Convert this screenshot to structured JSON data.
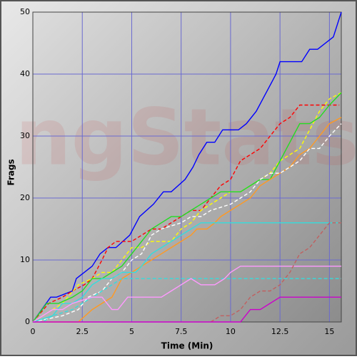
{
  "chart_data": {
    "type": "line",
    "watermark": "ngStats",
    "x_label": "Time (Min)",
    "y_label": "Frags",
    "xlim": [
      0,
      15.6
    ],
    "ylim": [
      0,
      50
    ],
    "xticks": [
      0,
      2.5,
      5,
      7.5,
      10,
      12.5,
      15
    ],
    "yticks": [
      0,
      10,
      20,
      30,
      40,
      50
    ],
    "grid": true,
    "series": [
      {
        "color": "#0000ff",
        "dashed": false,
        "x": [
          0,
          0.9,
          1.2,
          2,
          2.2,
          3,
          3.4,
          3.8,
          4.2,
          4.9,
          5.4,
          6.1,
          6.6,
          7,
          7.7,
          8.1,
          8.4,
          8.8,
          9.2,
          9.6,
          10.4,
          10.8,
          11.3,
          11.8,
          12.3,
          12.5,
          13.6,
          14,
          14.4,
          15.2,
          15.6
        ],
        "values": [
          0,
          4,
          4,
          5,
          7,
          9,
          11,
          12,
          12,
          14,
          17,
          19,
          21,
          21,
          23,
          25,
          27,
          29,
          29,
          31,
          31,
          32,
          34,
          37,
          40,
          42,
          42,
          44,
          44,
          46,
          50
        ]
      },
      {
        "color": "#ff0000",
        "dashed": true,
        "x": [
          0,
          0.8,
          1.5,
          2,
          2.6,
          3,
          3.5,
          3.8,
          4.2,
          5,
          5.5,
          6,
          6.5,
          7,
          7.5,
          8,
          8.5,
          9,
          9.5,
          10,
          10.5,
          11,
          11.5,
          12,
          12.5,
          13,
          13.5,
          15.5
        ],
        "values": [
          0,
          3,
          4,
          5,
          6,
          7,
          10,
          12,
          13,
          13,
          14,
          15,
          15,
          16,
          17,
          18,
          18,
          20,
          22,
          23,
          26,
          27,
          28,
          30,
          32,
          33,
          35,
          35
        ]
      },
      {
        "color": "#ffff00",
        "dashed": true,
        "x": [
          0,
          1,
          1.5,
          2.3,
          3,
          3.5,
          4,
          4.5,
          5,
          5.5,
          6,
          7,
          7.5,
          8,
          8.5,
          9,
          9.5,
          10,
          10.5,
          11,
          11.5,
          12,
          12.5,
          13,
          13.5,
          14,
          14.5,
          15,
          15.6
        ],
        "values": [
          0,
          2,
          3,
          6,
          7,
          8,
          8,
          10,
          12,
          12,
          13,
          13,
          15,
          16,
          18,
          19,
          20,
          21,
          21,
          22,
          23,
          24,
          26,
          27,
          28,
          31,
          34,
          36,
          37
        ]
      },
      {
        "color": "#22dd22",
        "dashed": false,
        "x": [
          0,
          0.7,
          1.3,
          2,
          2.5,
          3,
          3.5,
          4,
          4.5,
          5,
          5.5,
          6,
          6.5,
          7,
          7.5,
          8,
          8.5,
          9,
          9.5,
          10.5,
          11,
          11.5,
          12,
          12.5,
          13,
          13.5,
          14,
          14.5,
          15,
          15.6
        ],
        "values": [
          0,
          3,
          3,
          4,
          5,
          7,
          7,
          8,
          9,
          11,
          13,
          15,
          16,
          17,
          17,
          18,
          19,
          20,
          21,
          21,
          22,
          23,
          23,
          26,
          29,
          32,
          32,
          33,
          35,
          37
        ]
      },
      {
        "color": "#ff9922",
        "dashed": false,
        "x": [
          0,
          2.3,
          3,
          3.5,
          4,
          4.5,
          5,
          5.5,
          6,
          6.5,
          7,
          7.5,
          8,
          8.3,
          8.8,
          9.2,
          9.5,
          10,
          10.5,
          11,
          11.5,
          12,
          12.5,
          13,
          13.5,
          14,
          14.5,
          15,
          15.6
        ],
        "values": [
          0,
          0,
          2,
          3,
          4,
          7,
          8,
          9,
          10,
          11,
          12,
          13,
          14,
          15,
          15,
          16,
          17,
          18,
          19,
          20,
          22,
          23,
          24,
          25,
          27,
          28,
          30,
          32,
          33
        ]
      },
      {
        "color": "#ffffff",
        "dashed": true,
        "x": [
          0,
          1.5,
          2.3,
          2.8,
          3.5,
          4,
          4.5,
          5,
          5.5,
          6,
          6.5,
          7.5,
          8,
          8.5,
          9,
          10,
          10.5,
          11,
          11.5,
          12,
          12.5,
          13,
          13.5,
          14,
          14.5,
          15,
          15.6
        ],
        "values": [
          0,
          1,
          2,
          4,
          5,
          7,
          8,
          10,
          11,
          14,
          15,
          16,
          17,
          17,
          18,
          19,
          20,
          21,
          23,
          24,
          24,
          25,
          26,
          28,
          28,
          30,
          32
        ]
      },
      {
        "color": "#33dddd",
        "dashed": false,
        "x": [
          0,
          1,
          1.5,
          2,
          2.5,
          3,
          3.5,
          4,
          4.5,
          5.2,
          5.5,
          6,
          6.5,
          7,
          7.5,
          8,
          8.5,
          15.6
        ],
        "values": [
          0,
          1,
          3,
          3,
          4,
          6,
          7,
          7,
          8,
          8,
          9,
          11,
          12,
          13,
          14,
          15,
          16,
          16
        ]
      },
      {
        "color": "#33dddd",
        "dashed": true,
        "x": [
          0,
          0.5,
          1,
          2,
          2.5,
          3,
          3.5,
          4,
          4.5,
          15.6
        ],
        "values": [
          0,
          0,
          1,
          2,
          3,
          4,
          5,
          6,
          7,
          7
        ]
      },
      {
        "color": "#ff99ff",
        "dashed": false,
        "x": [
          0,
          1,
          1.5,
          2,
          3,
          3.5,
          4,
          4.3,
          4.8,
          6.5,
          7,
          7.5,
          8,
          8.5,
          9.2,
          9.7,
          10,
          10.5,
          15.6
        ],
        "values": [
          0,
          2,
          2,
          3,
          4,
          4,
          2,
          2,
          4,
          4,
          5,
          6,
          7,
          6,
          6,
          7,
          8,
          9,
          9
        ]
      },
      {
        "color": "#c06060",
        "dashed": true,
        "x": [
          9,
          9.5,
          10,
          10.5,
          11,
          11.5,
          12,
          12.5,
          13,
          13.5,
          14,
          14.5,
          15,
          15.6
        ],
        "values": [
          0,
          1,
          1,
          2,
          4,
          5,
          5,
          6,
          8,
          11,
          12,
          14,
          16,
          16
        ]
      },
      {
        "color": "#cc00cc",
        "dashed": false,
        "x": [
          0,
          10.5,
          11,
          11.5,
          12,
          12.5,
          15.6
        ],
        "values": [
          0,
          0,
          2,
          2,
          3,
          4,
          4
        ]
      }
    ]
  }
}
